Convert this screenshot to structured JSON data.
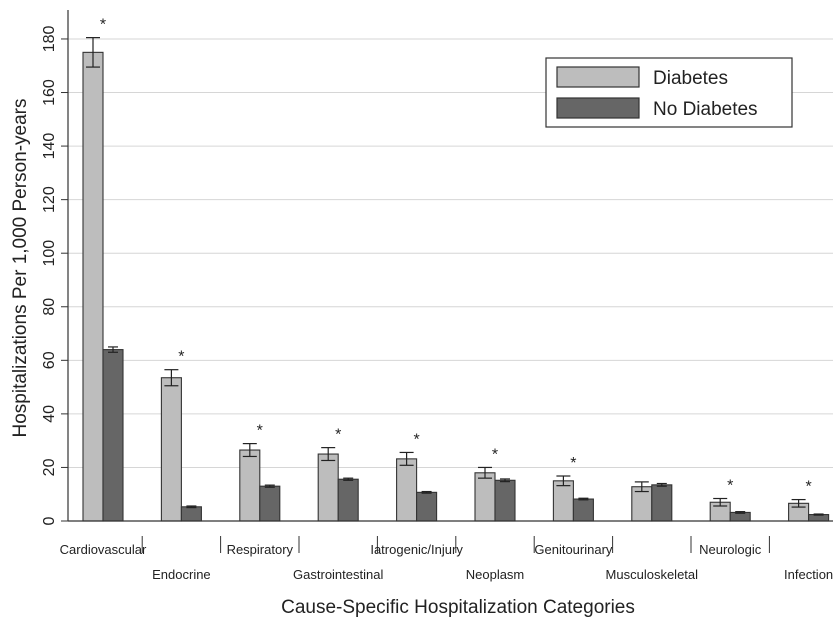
{
  "chart_data": {
    "type": "bar",
    "title": "",
    "xlabel": "Cause-Specific Hospitalization Categories",
    "ylabel": "Hospitalizations Per 1,000 Person-years",
    "ylim": [
      0,
      190
    ],
    "yticks": [
      0,
      20,
      40,
      60,
      80,
      100,
      120,
      140,
      160,
      180
    ],
    "grid": true,
    "legend_position": "top-right",
    "categories": [
      "Cardiovascular",
      "Endocrine",
      "Respiratory",
      "Gastrointestinal",
      "Iatrogenic/Injury",
      "Neoplasm",
      "Genitourinary",
      "Musculoskeletal",
      "Neurologic",
      "Infection"
    ],
    "series": [
      {
        "name": "Diabetes",
        "color": "#bdbdbd",
        "values": [
          175,
          53.5,
          26.5,
          25,
          23.2,
          18,
          15,
          12.8,
          7,
          6.6
        ],
        "error": [
          5.5,
          3,
          2.4,
          2.4,
          2.4,
          2,
          1.8,
          1.8,
          1.4,
          1.4
        ]
      },
      {
        "name": "No Diabetes",
        "color": "#666666",
        "values": [
          64,
          5.3,
          13,
          15.6,
          10.7,
          15.2,
          8.2,
          13.5,
          3.2,
          2.4
        ],
        "error": [
          1,
          0.3,
          0.4,
          0.4,
          0.3,
          0.5,
          0.3,
          0.5,
          0.3,
          0.2
        ]
      }
    ],
    "significant": [
      true,
      true,
      true,
      true,
      true,
      true,
      true,
      false,
      true,
      true
    ],
    "significance_marker": "*"
  }
}
